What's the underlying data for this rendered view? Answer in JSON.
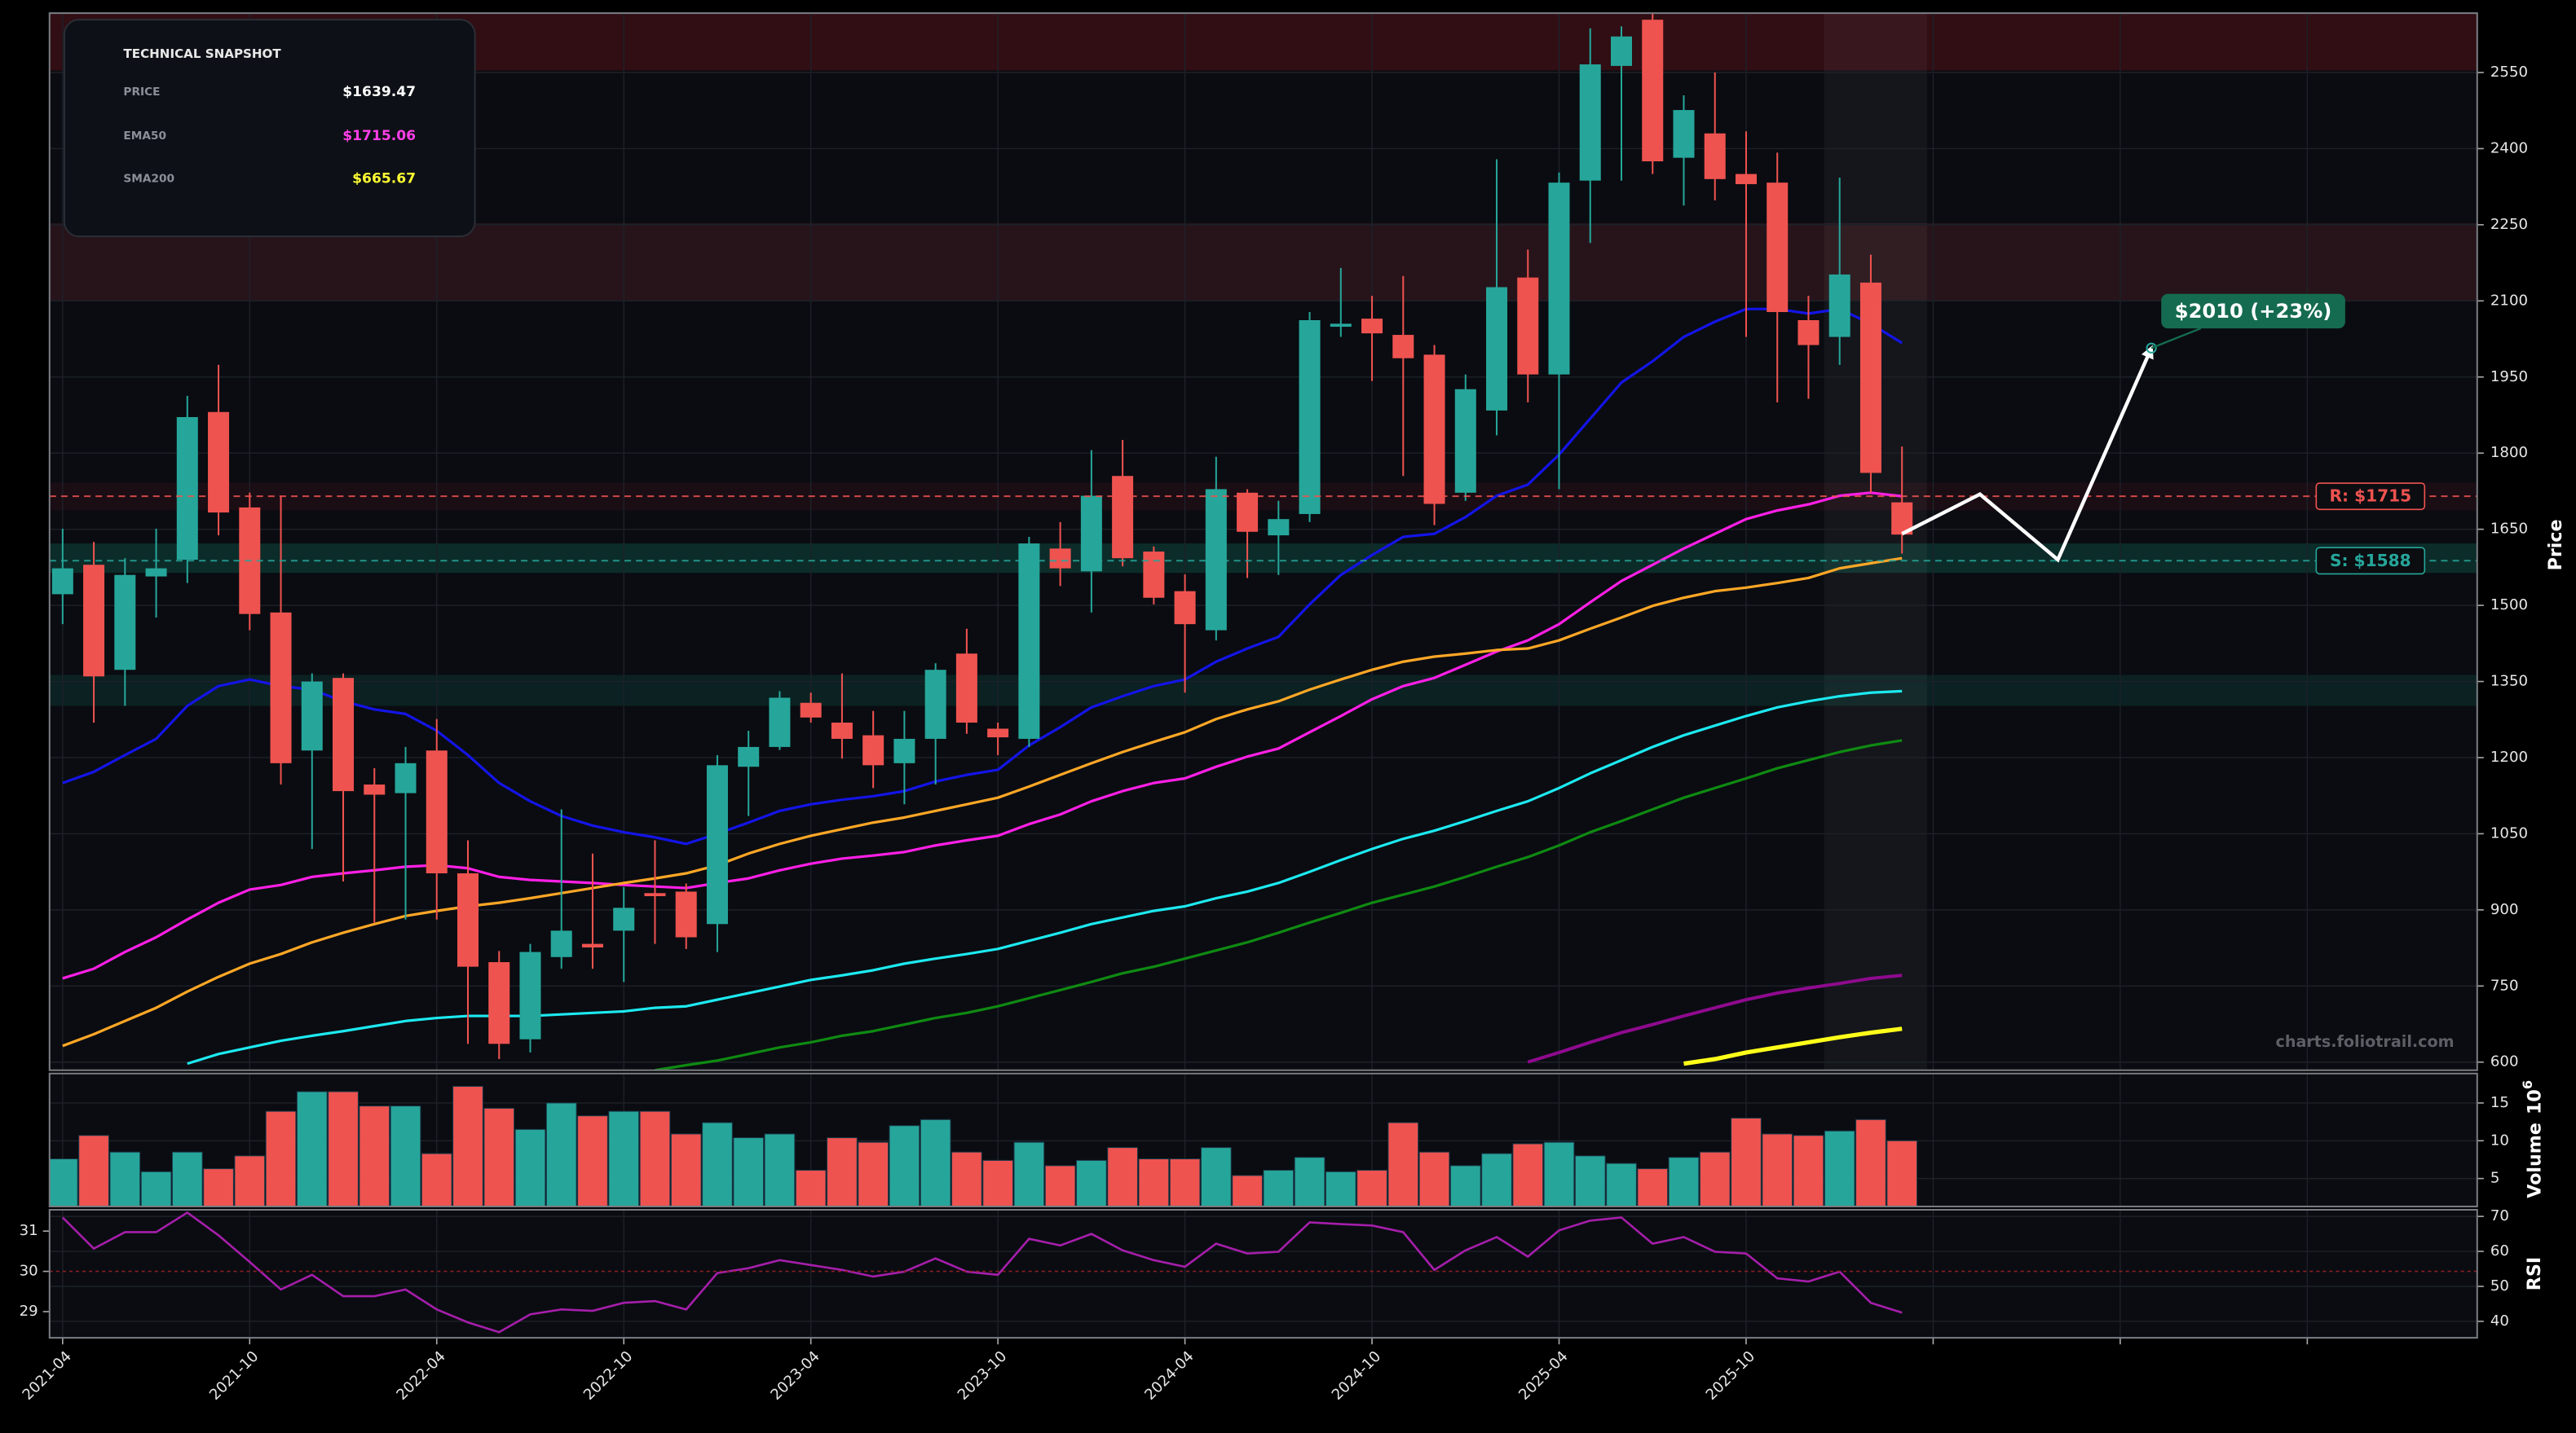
{
  "chart_data": [
    {
      "type": "candlestick",
      "ylabel": "Price",
      "ylim": [
        584,
        2667
      ],
      "yticks": [
        600,
        750,
        900,
        1050,
        1200,
        1350,
        1500,
        1650,
        1800,
        1950,
        2100,
        2250,
        2400,
        2550
      ],
      "grid": true,
      "up_color": "#26a69a",
      "down_color": "#ef5350",
      "open": [
        1522,
        1580,
        1373,
        1557,
        1590,
        1881,
        1693,
        1486,
        1214,
        1357,
        1147,
        1130,
        1214,
        972,
        797,
        645,
        807,
        833,
        859,
        933,
        936,
        872,
        1182,
        1221,
        1308,
        1269,
        1244,
        1189,
        1237,
        1405,
        1257,
        1237,
        1612,
        1567,
        1755,
        1606,
        1528,
        1451,
        1722,
        1638,
        1680,
        2049,
        2065,
        2033,
        1994,
        1722,
        1884,
        2146,
        1955,
        2337,
        2563,
        2654,
        2382,
        2430,
        2350,
        2333,
        2062,
        2029,
        2136,
        1703
      ],
      "high": [
        1651,
        1625,
        1593,
        1651,
        1913,
        1974,
        1722,
        1716,
        1366,
        1366,
        1179,
        1221,
        1276,
        1037,
        819,
        833,
        1098,
        1011,
        945,
        1037,
        952,
        1205,
        1253,
        1331,
        1328,
        1366,
        1292,
        1292,
        1386,
        1454,
        1269,
        1635,
        1664,
        1806,
        1826,
        1616,
        1561,
        1793,
        1729,
        1706,
        2078,
        2165,
        2110,
        2149,
        2013,
        1955,
        2379,
        2201,
        2353,
        2637,
        2641,
        2667,
        2505,
        2550,
        2434,
        2392,
        2110,
        2343,
        2191,
        1813
      ],
      "low": [
        1463,
        1269,
        1302,
        1476,
        1544,
        1638,
        1451,
        1147,
        1020,
        956,
        875,
        881,
        881,
        636,
        606,
        619,
        784,
        784,
        758,
        833,
        823,
        817,
        1085,
        1215,
        1269,
        1198,
        1140,
        1108,
        1147,
        1247,
        1205,
        1221,
        1538,
        1486,
        1577,
        1502,
        1328,
        1431,
        1554,
        1560,
        1664,
        2029,
        1942,
        1755,
        1658,
        1706,
        1835,
        1900,
        1729,
        2214,
        2337,
        2350,
        2288,
        2298,
        2029,
        1900,
        1907,
        1974,
        1722,
        1602
      ],
      "close": [
        1573,
        1360,
        1560,
        1573,
        1871,
        1683,
        1483,
        1189,
        1350,
        1134,
        1127,
        1189,
        972,
        788,
        636,
        817,
        859,
        826,
        904,
        927,
        846,
        1185,
        1221,
        1318,
        1279,
        1237,
        1185,
        1237,
        1373,
        1269,
        1240,
        1622,
        1573,
        1716,
        1593,
        1515,
        1463,
        1729,
        1645,
        1670,
        2062,
        2055,
        2036,
        1987,
        1700,
        1926,
        2127,
        1955,
        2333,
        2566,
        2621,
        2375,
        2476,
        2340,
        2330,
        2078,
        2013,
        2152,
        1761,
        1639.47
      ],
      "lines": [
        {
          "color": "#1414e6",
          "width": 1.6,
          "values": [
            1150,
            1172,
            1205,
            1237,
            1302,
            1341,
            1354,
            1341,
            1334,
            1311,
            1295,
            1286,
            1253,
            1205,
            1150,
            1114,
            1085,
            1066,
            1053,
            1043,
            1030,
            1050,
            1072,
            1095,
            1108,
            1117,
            1124,
            1134,
            1153,
            1166,
            1176,
            1224,
            1260,
            1299,
            1321,
            1341,
            1354,
            1389,
            1415,
            1438,
            1502,
            1560,
            1599,
            1635,
            1641,
            1674,
            1716,
            1738,
            1797,
            1868,
            1939,
            1981,
            2029,
            2059,
            2084,
            2084,
            2075,
            2084,
            2055,
            2017
          ]
        },
        {
          "color": "#ff1fe6",
          "width": 1.6,
          "values": [
            765,
            784,
            817,
            846,
            881,
            914,
            940,
            949,
            965,
            972,
            978,
            985,
            988,
            982,
            965,
            959,
            956,
            953,
            949,
            946,
            943,
            953,
            962,
            978,
            991,
            1001,
            1007,
            1014,
            1027,
            1037,
            1046,
            1069,
            1088,
            1114,
            1134,
            1150,
            1159,
            1182,
            1202,
            1218,
            1250,
            1282,
            1315,
            1341,
            1357,
            1383,
            1409,
            1431,
            1463,
            1506,
            1548,
            1580,
            1612,
            1641,
            1670,
            1687,
            1699,
            1716,
            1722,
            1715.06
          ]
        },
        {
          "color": "#ffa726",
          "width": 1.6,
          "values": [
            632,
            655,
            681,
            707,
            739,
            768,
            794,
            813,
            836,
            855,
            872,
            888,
            898,
            907,
            914,
            923,
            933,
            943,
            953,
            962,
            972,
            988,
            1011,
            1030,
            1046,
            1059,
            1072,
            1082,
            1095,
            1108,
            1121,
            1143,
            1166,
            1189,
            1211,
            1231,
            1250,
            1276,
            1295,
            1311,
            1334,
            1354,
            1373,
            1389,
            1399,
            1405,
            1412,
            1415,
            1431,
            1454,
            1476,
            1499,
            1515,
            1528,
            1535,
            1544,
            1554,
            1573,
            1583,
            1593
          ]
        },
        {
          "color": "#1de9f0",
          "width": 1.6,
          "values": [
            null,
            null,
            null,
            null,
            597,
            616,
            629,
            642,
            652,
            661,
            671,
            681,
            687,
            691,
            691,
            691,
            694,
            697,
            700,
            707,
            710,
            723,
            736,
            749,
            762,
            771,
            781,
            794,
            804,
            813,
            823,
            839,
            855,
            872,
            885,
            898,
            907,
            923,
            936,
            953,
            975,
            998,
            1020,
            1040,
            1056,
            1075,
            1095,
            1114,
            1140,
            1169,
            1195,
            1221,
            1244,
            1263,
            1282,
            1299,
            1311,
            1321,
            1328,
            1331
          ]
        },
        {
          "color": "#0f8a12",
          "width": 1.6,
          "values": [
            null,
            null,
            null,
            null,
            null,
            null,
            null,
            null,
            null,
            null,
            null,
            null,
            null,
            null,
            null,
            null,
            null,
            null,
            null,
            584,
            594,
            603,
            616,
            629,
            639,
            652,
            661,
            674,
            687,
            697,
            710,
            726,
            742,
            758,
            775,
            788,
            804,
            820,
            836,
            855,
            875,
            894,
            914,
            930,
            946,
            965,
            985,
            1004,
            1027,
            1053,
            1075,
            1098,
            1121,
            1140,
            1159,
            1179,
            1195,
            1211,
            1224,
            1234
          ]
        },
        {
          "color": "#8e0a8e",
          "width": 2,
          "values": [
            null,
            null,
            null,
            null,
            null,
            null,
            null,
            null,
            null,
            null,
            null,
            null,
            null,
            null,
            null,
            null,
            null,
            null,
            null,
            null,
            null,
            null,
            null,
            null,
            null,
            null,
            null,
            null,
            null,
            null,
            null,
            null,
            null,
            null,
            null,
            null,
            null,
            null,
            null,
            null,
            null,
            null,
            null,
            null,
            null,
            null,
            null,
            600,
            619,
            639,
            658,
            674,
            691,
            707,
            723,
            736,
            746,
            755,
            765,
            771
          ]
        },
        {
          "color": "#ffff1a",
          "width": 2.6,
          "values": [
            null,
            null,
            null,
            null,
            null,
            null,
            null,
            null,
            null,
            null,
            null,
            null,
            null,
            null,
            null,
            null,
            null,
            null,
            null,
            null,
            null,
            null,
            null,
            null,
            null,
            null,
            null,
            null,
            null,
            null,
            null,
            null,
            null,
            null,
            null,
            null,
            null,
            null,
            null,
            null,
            null,
            null,
            null,
            null,
            null,
            null,
            null,
            null,
            null,
            null,
            null,
            null,
            597,
            606,
            619,
            629,
            639,
            649,
            658,
            665.67
          ]
        }
      ],
      "zones": [
        {
          "from": 2554,
          "to": 2667,
          "color": "rgba(120,20,25,0.35)"
        },
        {
          "from": 2101,
          "to": 2253,
          "color": "rgba(110,40,50,0.3)"
        },
        {
          "from": 1687,
          "to": 1742,
          "color": "rgba(90,20,30,0.22)"
        },
        {
          "from": 1564,
          "to": 1622,
          "color": "rgba(20,120,100,0.3)"
        },
        {
          "from": 1302,
          "to": 1363,
          "color": "rgba(20,110,95,0.22)"
        }
      ],
      "levels": [
        {
          "value": 1715,
          "label": "R: $1715",
          "color": "#ef5350"
        },
        {
          "value": 1588,
          "label": "S: $1588",
          "color": "#26a69a"
        }
      ],
      "highlight_x": [
        56.5,
        59.8
      ],
      "forecast": {
        "x": [
          59,
          61.5,
          64,
          67
        ],
        "values": [
          1641,
          1719,
          1590,
          2007
        ],
        "color": "#ffffff",
        "label": "$2010 (+23%)",
        "label_color": "#156b4f"
      },
      "watermark": "charts.foliotrail.com",
      "snapshot": {
        "title": "TECHNICAL SNAPSHOT",
        "rows": [
          {
            "label": "PRICE",
            "value": "$1639.47",
            "color": "#ffffff"
          },
          {
            "label": "EMA50",
            "value": "$1715.06",
            "color": "#ff3fe8"
          },
          {
            "label": "SMA200",
            "value": "$665.67",
            "color": "#ffff33"
          }
        ]
      }
    },
    {
      "type": "bar",
      "ylabel": "Volume",
      "scale_label": "10",
      "scale_exponent": "6",
      "ylim": [
        1.3,
        18.9
      ],
      "yticks": [
        5,
        10,
        15
      ],
      "grid": true,
      "values": [
        7.6,
        10.7,
        8.5,
        5.9,
        8.5,
        6.3,
        8.0,
        13.9,
        16.5,
        16.5,
        14.6,
        14.6,
        8.3,
        17.2,
        14.3,
        11.5,
        15.0,
        13.3,
        13.9,
        13.9,
        10.9,
        12.4,
        10.4,
        10.9,
        6.1,
        10.4,
        9.8,
        12.0,
        12.8,
        8.5,
        7.4,
        9.8,
        6.7,
        7.4,
        9.1,
        7.6,
        7.6,
        9.1,
        5.4,
        6.1,
        7.8,
        5.9,
        6.1,
        12.4,
        8.5,
        6.7,
        8.3,
        9.6,
        9.8,
        8.0,
        7.0,
        6.3,
        7.8,
        8.5,
        13.0,
        10.9,
        10.7,
        11.3,
        12.8,
        10.0
      ]
    },
    {
      "type": "line",
      "ylabel": "RSI",
      "color": "#a51eaa",
      "ylim": [
        35.3,
        71.9
      ],
      "yticks": [
        40,
        50,
        60,
        70
      ],
      "grid": true,
      "y2lim": [
        28.35,
        31.53
      ],
      "y2ticks": [
        29,
        30,
        31
      ],
      "y2_reference": 30,
      "xlim": [
        -0.42,
        77.45
      ],
      "xticks": [
        {
          "value": 0,
          "label": "2021-04"
        },
        {
          "value": 6,
          "label": "2021-10"
        },
        {
          "value": 12,
          "label": "2022-04"
        },
        {
          "value": 18,
          "label": "2022-10"
        },
        {
          "value": 24,
          "label": "2023-04"
        },
        {
          "value": 30,
          "label": "2023-10"
        },
        {
          "value": 36,
          "label": "2024-04"
        },
        {
          "value": 42,
          "label": "2024-10"
        },
        {
          "value": 48,
          "label": "2025-04"
        },
        {
          "value": 54,
          "label": "2025-10"
        },
        {
          "value": 60,
          "label": null
        },
        {
          "value": 66,
          "label": null
        },
        {
          "value": 72,
          "label": null
        }
      ],
      "values": [
        69.7,
        60.8,
        65.5,
        65.5,
        71.1,
        64.6,
        57.0,
        49.1,
        53.3,
        47.2,
        47.2,
        49.1,
        43.4,
        39.7,
        36.9,
        42.0,
        43.4,
        43.0,
        45.3,
        45.8,
        43.4,
        53.8,
        55.2,
        57.5,
        56.1,
        54.7,
        52.8,
        54.2,
        58.0,
        54.2,
        53.3,
        63.6,
        61.7,
        65.0,
        60.3,
        57.5,
        55.6,
        62.2,
        59.4,
        59.9,
        68.3,
        67.8,
        67.4,
        65.5,
        54.7,
        60.3,
        64.1,
        58.5,
        66.0,
        68.8,
        69.7,
        62.2,
        64.1,
        59.9,
        59.4,
        52.3,
        51.4,
        54.2,
        45.3,
        42.5
      ]
    }
  ]
}
